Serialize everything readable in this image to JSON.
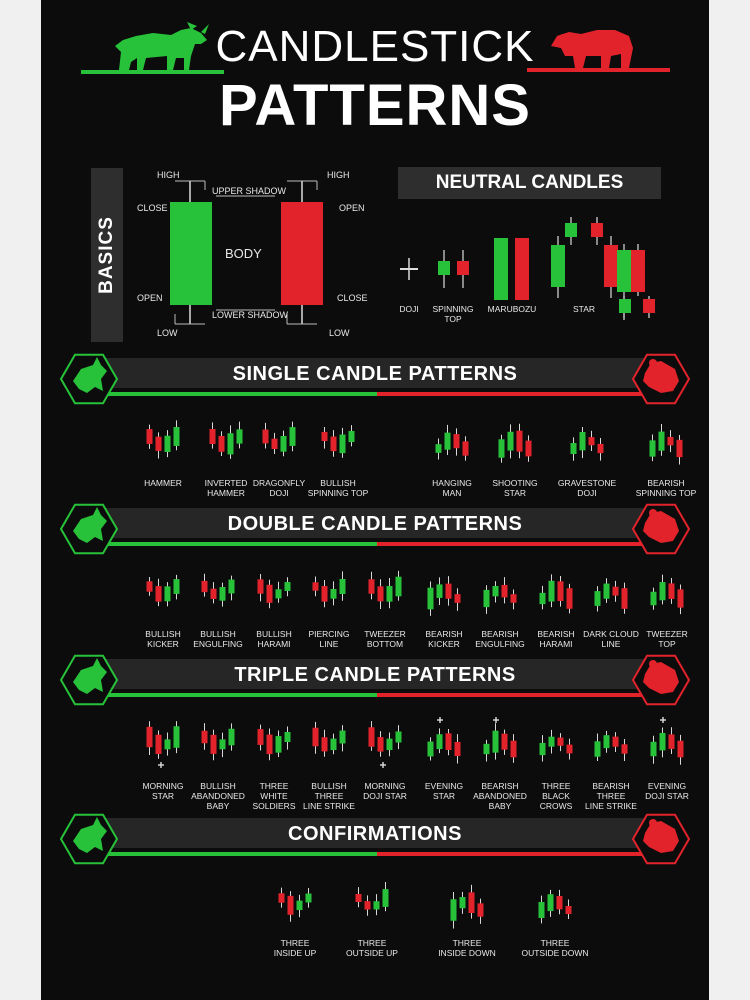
{
  "header": {
    "title_line1": "CANDLESTICK",
    "title_line2": "PATTERNS"
  },
  "basics": {
    "title": "BASICS",
    "labels": {
      "high_left": "HIGH",
      "close_left": "CLOSE",
      "open_left": "OPEN",
      "low_left": "LOW",
      "upper_shadow": "UPPER SHADOW",
      "body": "BODY",
      "lower_shadow": "LOWER SHADOW",
      "high_right": "HIGH",
      "open_right": "OPEN",
      "close_right": "CLOSE",
      "low_right": "LOW"
    }
  },
  "neutral": {
    "title": "NEUTRAL CANDLES",
    "items": [
      {
        "label": "DOJI"
      },
      {
        "label": "SPINNING\nTOP"
      },
      {
        "label": "MARUBOZU"
      },
      {
        "label": "STAR"
      }
    ]
  },
  "sections": [
    {
      "title": "SINGLE CANDLE PATTERNS",
      "patterns": [
        "HAMMER",
        "INVERTED\nHAMMER",
        "DRAGONFLY\nDOJI",
        "BULLISH\nSPINNING TOP",
        "HANGING\nMAN",
        "SHOOTING\nSTAR",
        "GRAVESTONE\nDOJI",
        "BEARISH\nSPINNING TOP"
      ]
    },
    {
      "title": "DOUBLE CANDLE PATTERNS",
      "patterns": [
        "BULLISH\nKICKER",
        "BULLISH\nENGULFING",
        "BULLISH\nHARAMI",
        "PIERCING\nLINE",
        "TWEEZER\nBOTTOM",
        "BEARISH\nKICKER",
        "BEARISH\nENGULFING",
        "BEARISH\nHARAMI",
        "DARK CLOUD\nLINE",
        "TWEEZER\nTOP"
      ]
    },
    {
      "title": "TRIPLE CANDLE PATTERNS",
      "patterns": [
        "MORNING\nSTAR",
        "BULLISH\nABANDONED\nBABY",
        "THREE\nWHITE\nSOLDIERS",
        "BULLISH\nTHREE\nLINE STRIKE",
        "MORNING\nDOJI STAR",
        "EVENING\nSTAR",
        "BEARISH\nABANDONED\nBABY",
        "THREE\nBLACK\nCROWS",
        "BEARISH\nTHREE\nLINE STRIKE",
        "EVENING\nDOJI STAR"
      ]
    },
    {
      "title": "CONFIRMATIONS",
      "patterns": [
        "THREE\nINSIDE UP",
        "THREE\nOUTSIDE UP",
        "THREE\nINSIDE DOWN",
        "THREE\nOUTSIDE DOWN"
      ]
    }
  ],
  "colors": {
    "bull": "#27c23a",
    "bear": "#e3232b",
    "background": "#0c0c0c",
    "panel": "#2e2e2e"
  },
  "icons": [
    "bull-icon",
    "bear-icon"
  ]
}
